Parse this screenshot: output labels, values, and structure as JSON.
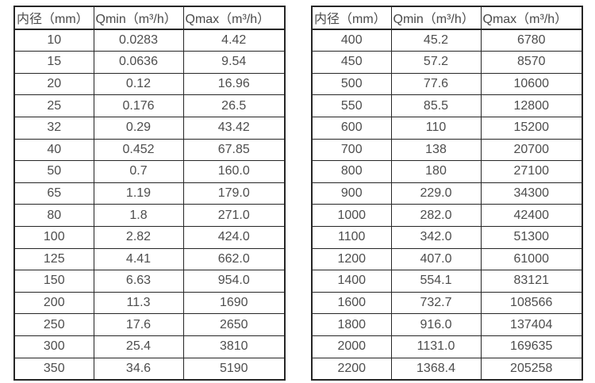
{
  "page": {
    "background": "#ffffff",
    "text_color": "#4d4d4d",
    "border_color": "#262626"
  },
  "chart_data": [
    {
      "type": "table",
      "title": "",
      "columns": [
        "内径（mm）",
        "Qmin（m³/h）",
        "Qmax（m³/h）"
      ],
      "rows": [
        [
          "10",
          "0.0283",
          "4.42"
        ],
        [
          "15",
          "0.0636",
          "9.54"
        ],
        [
          "20",
          "0.12",
          "16.96"
        ],
        [
          "25",
          "0.176",
          "26.5"
        ],
        [
          "32",
          "0.29",
          "43.42"
        ],
        [
          "40",
          "0.452",
          "67.85"
        ],
        [
          "50",
          "0.7",
          "160.0"
        ],
        [
          "65",
          "1.19",
          "179.0"
        ],
        [
          "80",
          "1.8",
          "271.0"
        ],
        [
          "100",
          "2.82",
          "424.0"
        ],
        [
          "125",
          "4.41",
          "662.0"
        ],
        [
          "150",
          "6.63",
          "954.0"
        ],
        [
          "200",
          "11.3",
          "1690"
        ],
        [
          "250",
          "17.6",
          "2650"
        ],
        [
          "300",
          "25.4",
          "3810"
        ],
        [
          "350",
          "34.6",
          "5190"
        ]
      ]
    },
    {
      "type": "table",
      "title": "",
      "columns": [
        "内径（mm）",
        "Qmin（m³/h）",
        "Qmax（m³/h）"
      ],
      "rows": [
        [
          "400",
          "45.2",
          "6780"
        ],
        [
          "450",
          "57.2",
          "8570"
        ],
        [
          "500",
          "77.6",
          "10600"
        ],
        [
          "550",
          "85.5",
          "12800"
        ],
        [
          "600",
          "110",
          "15200"
        ],
        [
          "700",
          "138",
          "20700"
        ],
        [
          "800",
          "180",
          "27100"
        ],
        [
          "900",
          "229.0",
          "34300"
        ],
        [
          "1000",
          "282.0",
          "42400"
        ],
        [
          "1100",
          "342.0",
          "51300"
        ],
        [
          "1200",
          "407.0",
          "61000"
        ],
        [
          "1400",
          "554.1",
          "83121"
        ],
        [
          "1600",
          "732.7",
          "108566"
        ],
        [
          "1800",
          "916.0",
          "137404"
        ],
        [
          "2000",
          "1131.0",
          "169635"
        ],
        [
          "2200",
          "1368.4",
          "205258"
        ]
      ]
    }
  ]
}
